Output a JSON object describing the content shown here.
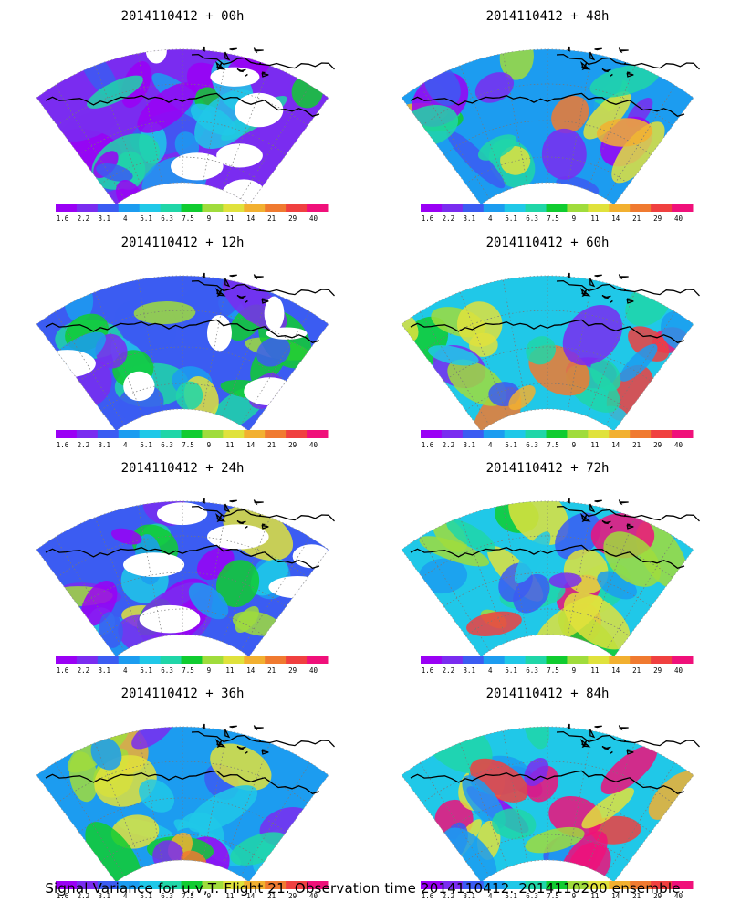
{
  "panels": [
    {
      "title": "2014110412 + 00h",
      "intensity": 0.25
    },
    {
      "title": "2014110412 + 48h",
      "intensity": 0.62
    },
    {
      "title": "2014110412 + 12h",
      "intensity": 0.35
    },
    {
      "title": "2014110412 + 60h",
      "intensity": 0.7
    },
    {
      "title": "2014110412 + 24h",
      "intensity": 0.45
    },
    {
      "title": "2014110412 + 72h",
      "intensity": 0.8
    },
    {
      "title": "2014110412 + 36h",
      "intensity": 0.55
    },
    {
      "title": "2014110412 + 84h",
      "intensity": 0.88
    }
  ],
  "colorbar": {
    "labels": [
      "1.6",
      "2.2",
      "3.1",
      "4",
      "5.1",
      "6.3",
      "7.5",
      "9",
      "11",
      "14",
      "21",
      "29",
      "40"
    ],
    "colors": [
      "#9a00f5",
      "#7a2cf0",
      "#3b5cf2",
      "#1c9cf0",
      "#20c8e8",
      "#20d6a8",
      "#10cc30",
      "#a0dc3c",
      "#e0e23c",
      "#f2b030",
      "#f07a30",
      "#f04040",
      "#f0107a"
    ]
  },
  "caption": "Signal Variance for u,v,T. Flight 21. Observation time 2014110412. 2014110200 ensemble."
}
